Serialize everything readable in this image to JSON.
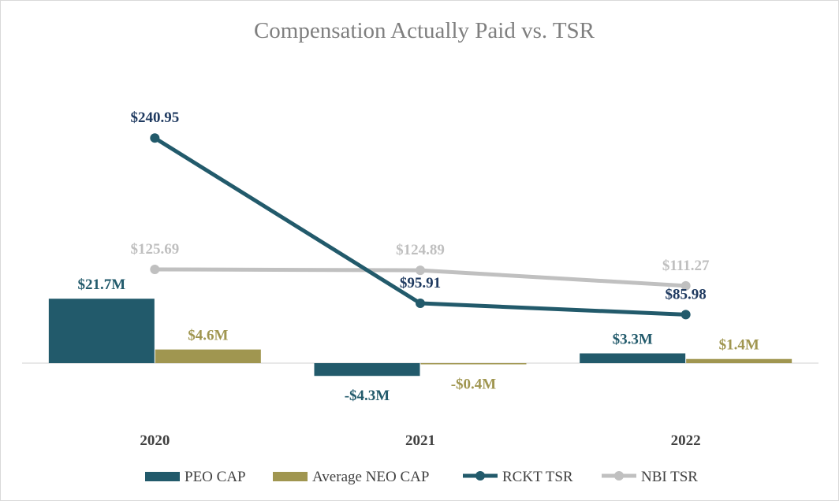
{
  "chart_data": {
    "type": "bar",
    "title": "Compensation Actually Paid vs. TSR",
    "categories": [
      "2020",
      "2021",
      "2022"
    ],
    "colors": {
      "peo_cap": "#225a6b",
      "neo_cap": "#a09650",
      "rckt_tsr": "#225a6b",
      "nbi_tsr": "#c0c0c0",
      "rckt_label": "#1f3a60",
      "nbi_label": "#bfbfbf"
    },
    "bar_series": [
      {
        "name": "PEO CAP",
        "values": [
          21.7,
          -4.3,
          3.3
        ],
        "labels": [
          "$21.7M",
          "-$4.3M",
          "$3.3M"
        ]
      },
      {
        "name": "Average NEO CAP",
        "values": [
          4.6,
          -0.4,
          1.4
        ],
        "labels": [
          "$4.6M",
          "-$0.4M",
          "$1.4M"
        ]
      }
    ],
    "line_series": [
      {
        "name": "RCKT TSR",
        "values": [
          240.95,
          95.91,
          85.98
        ],
        "labels": [
          "$240.95",
          "$95.91",
          "$85.98"
        ]
      },
      {
        "name": "NBI TSR",
        "values": [
          125.69,
          124.89,
          111.27
        ],
        "labels": [
          "$125.69",
          "$124.89",
          "$111.27"
        ]
      }
    ],
    "legend_position": "bottom",
    "grid": false
  }
}
